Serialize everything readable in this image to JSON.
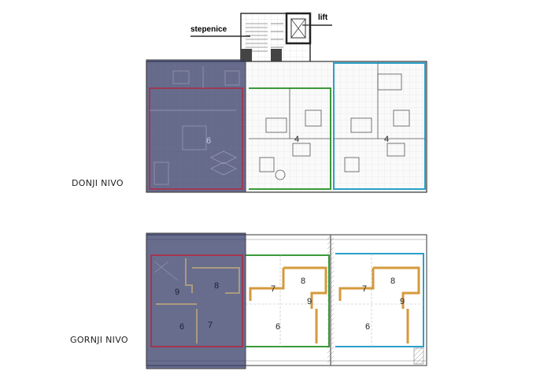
{
  "labels": {
    "stairs": "stepenice",
    "lift": "lift",
    "lower_level": "DONJI NIVO",
    "upper_level": "GORNJI NIVO"
  },
  "lower_rooms": {
    "left": "6",
    "middle": "4",
    "right": "4"
  },
  "upper_rooms": {
    "left": {
      "a": "9",
      "b": "8",
      "c": "6",
      "d": "7"
    },
    "middle": {
      "a": "7",
      "b": "8",
      "c": "9",
      "d": "6"
    },
    "right": {
      "a": "7",
      "b": "8",
      "c": "9",
      "d": "6"
    }
  },
  "colors": {
    "highlight_fill": "#2e3463",
    "unit_red": "#b8213a",
    "unit_green": "#3a9a3a",
    "unit_blue": "#2a9fc9",
    "wall_orange": "#d59a3c"
  }
}
